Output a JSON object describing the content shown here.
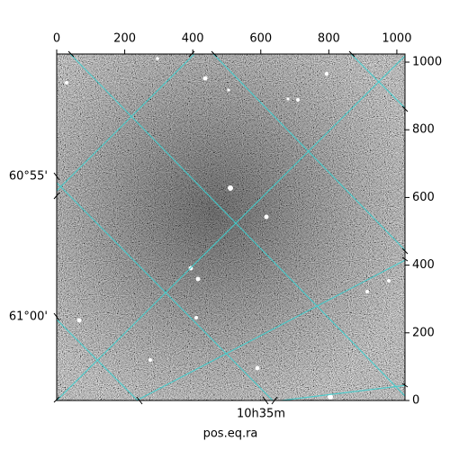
{
  "chart_data": {
    "type": "image",
    "xlabel": "pos.eq.ra",
    "xlim": [
      0,
      1024
    ],
    "ylim": [
      0,
      1024
    ],
    "xticks": [
      0,
      200,
      400,
      600,
      800,
      1000
    ],
    "yticks": [
      0,
      200,
      400,
      600,
      800,
      1000
    ],
    "ra_tick_labels": [
      "10h35m"
    ],
    "dec_tick_labels": [
      "60°55'",
      "61°00'"
    ]
  }
}
